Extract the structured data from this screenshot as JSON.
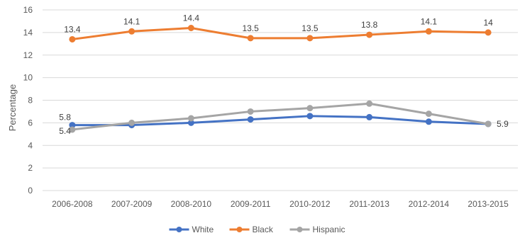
{
  "chart_data": {
    "type": "line",
    "title": "",
    "xlabel": "",
    "ylabel": "Percentage",
    "ylim": [
      0,
      16
    ],
    "yticks": [
      0,
      2,
      4,
      6,
      8,
      10,
      12,
      14,
      16
    ],
    "grid": true,
    "legend_position": "bottom",
    "categories": [
      "2006-2008",
      "2007-2009",
      "2008-2010",
      "2009-2011",
      "2010-2012",
      "2011-2013",
      "2012-2014",
      "2013-2015"
    ],
    "series": [
      {
        "name": "White",
        "color": "#4472c4",
        "values": [
          5.8,
          5.8,
          6.0,
          6.3,
          6.6,
          6.5,
          6.1,
          5.9
        ],
        "labels": [
          "5.8",
          "",
          "",
          "",
          "",
          "",
          "",
          ""
        ]
      },
      {
        "name": "Black",
        "color": "#ed7d31",
        "values": [
          13.4,
          14.1,
          14.4,
          13.5,
          13.5,
          13.8,
          14.1,
          14.0
        ],
        "labels": [
          "13.4",
          "14.1",
          "14.4",
          "13.5",
          "13.5",
          "13.8",
          "14.1",
          "14"
        ]
      },
      {
        "name": "Hispanic",
        "color": "#a5a5a5",
        "values": [
          5.4,
          6.0,
          6.4,
          7.0,
          7.3,
          7.7,
          6.8,
          5.9
        ],
        "labels": [
          "5.4",
          "",
          "",
          "",
          "",
          "",
          "",
          "5.9"
        ]
      }
    ]
  }
}
